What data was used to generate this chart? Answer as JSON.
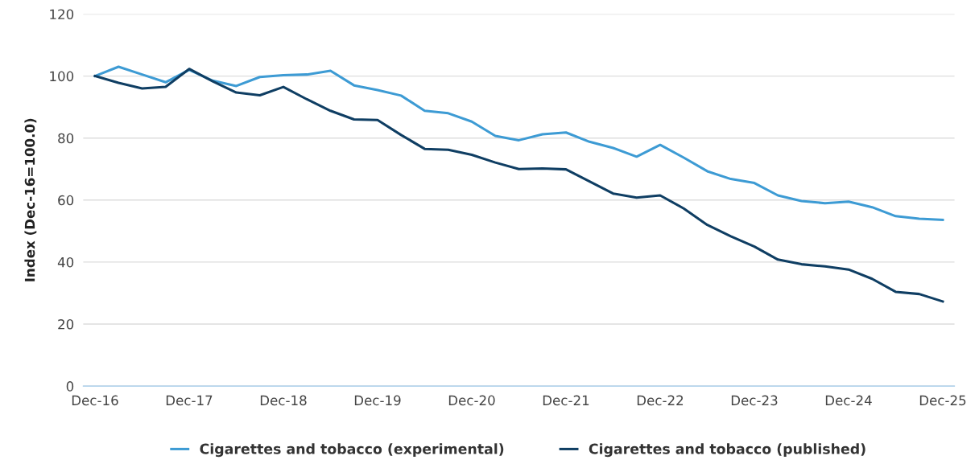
{
  "chart_data": {
    "type": "line",
    "ylabel": "Index (Dec-16=100.0)",
    "categories": [
      "Dec-16",
      null,
      null,
      null,
      "Dec-17",
      null,
      null,
      null,
      "Dec-18",
      null,
      null,
      null,
      "Dec-19",
      null,
      null,
      null,
      "Dec-20",
      null,
      null,
      null,
      "Dec-21",
      null,
      null,
      null,
      "Dec-22",
      null,
      null,
      null,
      "Dec-23",
      null,
      null,
      null,
      "Dec-24",
      null,
      null,
      null,
      "Dec-25"
    ],
    "series": [
      {
        "name": "Cigarettes and tobacco (experimental)",
        "color": "#3d9bd4",
        "values": [
          100,
          103,
          100.5,
          98,
          102,
          98.5,
          96.8,
          99.7,
          100.3,
          100.5,
          101.7,
          97,
          95.5,
          93.7,
          88.8,
          88,
          85.3,
          80.7,
          79.3,
          81.2,
          81.8,
          78.8,
          76.8,
          74,
          77.8,
          73.7,
          69.3,
          66.8,
          65.5,
          61.5,
          59.7,
          59,
          59.5,
          57.7,
          54.8,
          54,
          53.6
        ]
      },
      {
        "name": "Cigarettes and tobacco (published)",
        "color": "#0f3e63",
        "values": [
          100,
          97.8,
          96,
          96.5,
          102.3,
          98.3,
          94.7,
          93.8,
          96.5,
          92.5,
          88.8,
          86,
          85.8,
          81,
          76.5,
          76.2,
          74.6,
          72.1,
          70,
          70.2,
          69.9,
          66,
          62.1,
          60.8,
          61.5,
          57.3,
          52,
          48.3,
          45,
          40.8,
          39.3,
          38.6,
          37.6,
          34.6,
          30.4,
          29.7,
          27.3
        ]
      }
    ],
    "ylim": [
      0,
      120
    ],
    "yticks": [
      0,
      20,
      40,
      60,
      80,
      100,
      120
    ],
    "grid": "y",
    "legend": "bottom",
    "marker": "none",
    "line_style": "solid"
  }
}
